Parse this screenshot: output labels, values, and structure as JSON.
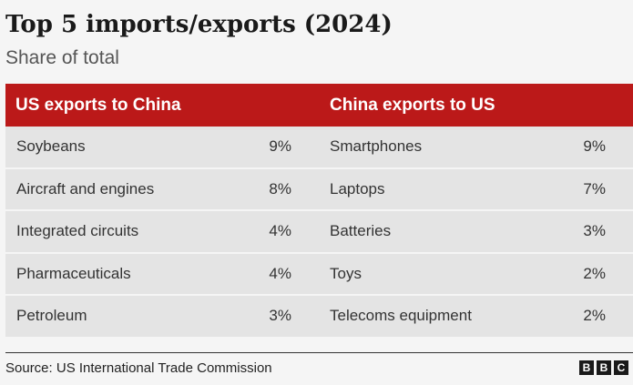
{
  "chart_data": {
    "type": "table",
    "title": "Top 5 imports/exports (2024)",
    "subtitle": "Share of total",
    "columns": [
      "US exports to China",
      "China exports to US"
    ],
    "rows": [
      {
        "us_item": "Soybeans",
        "us_share": "9%",
        "cn_item": "Smartphones",
        "cn_share": "9%"
      },
      {
        "us_item": "Aircraft and engines",
        "us_share": "8%",
        "cn_item": "Laptops",
        "cn_share": "7%"
      },
      {
        "us_item": "Integrated circuits",
        "us_share": "4%",
        "cn_item": "Batteries",
        "cn_share": "3%"
      },
      {
        "us_item": "Pharmaceuticals",
        "us_share": "4%",
        "cn_item": "Toys",
        "cn_share": "2%"
      },
      {
        "us_item": "Petroleum",
        "us_share": "3%",
        "cn_item": "Telecoms equipment",
        "cn_share": "2%"
      }
    ],
    "source": "Source: US International Trade Commission",
    "logo": [
      "B",
      "B",
      "C"
    ],
    "header_color": "#bb1919"
  }
}
